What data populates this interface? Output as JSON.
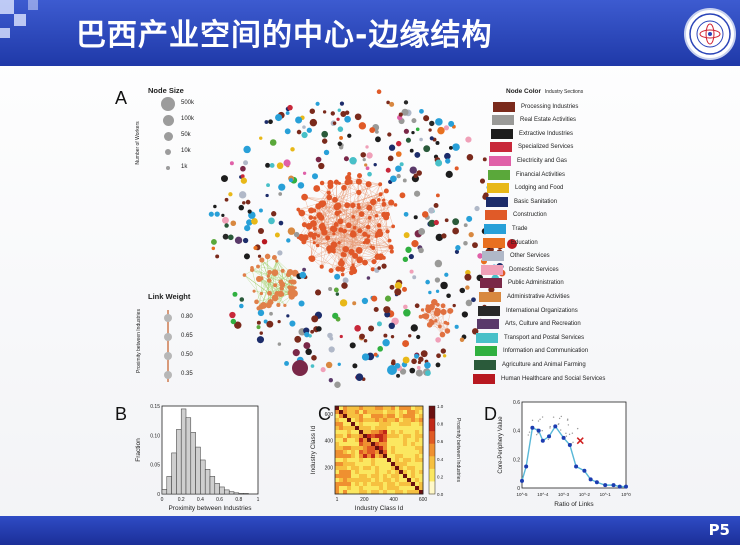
{
  "slide": {
    "title": "巴西产业空间的中心-边缘结构",
    "page": "P5"
  },
  "panels": {
    "a": "A",
    "b": "B",
    "c": "C",
    "d": "D"
  },
  "node_size_legend": {
    "title": "Node Size",
    "axis_label": "Number of Workers",
    "items": [
      "500k",
      "100k",
      "50k",
      "10k",
      "1k"
    ]
  },
  "link_weight_legend": {
    "title": "Link Weight",
    "axis_label": "Proximity between Industries",
    "items": [
      "0.80",
      "0.65",
      "0.50",
      "0.35"
    ]
  },
  "node_color_legend": {
    "title": "Node Color",
    "subtitle": "Industry Sections",
    "items": [
      {
        "label": "Processing Industries",
        "color": "#7a2a1c"
      },
      {
        "label": "Real Estate Activities",
        "color": "#9a9a98"
      },
      {
        "label": "Extractive Industries",
        "color": "#1d1d1d"
      },
      {
        "label": "Specialized Services",
        "color": "#c8283a"
      },
      {
        "label": "Electricity and Gas",
        "color": "#e060a8"
      },
      {
        "label": "Financial Activities",
        "color": "#5aa83a"
      },
      {
        "label": "Lodging and Food",
        "color": "#e8b818"
      },
      {
        "label": "Basic Sanitation",
        "color": "#1c2c6a"
      },
      {
        "label": "Construction",
        "color": "#e05a28"
      },
      {
        "label": "Trade",
        "color": "#28a0d8"
      },
      {
        "label": "Education",
        "color": "#e87020"
      },
      {
        "label": "Other Services",
        "color": "#b0b8c8"
      },
      {
        "label": "Domestic Services",
        "color": "#f0a0b8"
      },
      {
        "label": "Public Administration",
        "color": "#7a2848"
      },
      {
        "label": "Administrative Activities",
        "color": "#d88840"
      },
      {
        "label": "International Organizations",
        "color": "#282828"
      },
      {
        "label": "Arts, Culture and Recreation",
        "color": "#5a3a6a"
      },
      {
        "label": "Transport and Postal Services",
        "color": "#48c0c8"
      },
      {
        "label": "Information and Communication",
        "color": "#30b040"
      },
      {
        "label": "Agriculture and Animal Farming",
        "color": "#2a5a3a"
      },
      {
        "label": "Human Healthcare and Social Services",
        "color": "#b81820"
      }
    ]
  },
  "chart_data": [
    {
      "type": "bar",
      "panel": "B",
      "xlabel": "Proximity between Industries",
      "ylabel": "Fraction",
      "xlim": [
        0,
        1
      ],
      "ylim": [
        0,
        0.15
      ],
      "x_ticks": [
        "0",
        "0.2",
        "0.4",
        "0.6",
        "0.8",
        "1"
      ],
      "y_ticks": [
        "0",
        "0.05",
        "0.10",
        "0.15"
      ],
      "bin_centers": [
        0.025,
        0.075,
        0.125,
        0.175,
        0.225,
        0.275,
        0.325,
        0.375,
        0.425,
        0.475,
        0.525,
        0.575,
        0.625,
        0.675,
        0.725,
        0.775,
        0.825,
        0.875,
        0.925,
        0.975
      ],
      "values": [
        0.008,
        0.03,
        0.07,
        0.11,
        0.145,
        0.13,
        0.105,
        0.08,
        0.058,
        0.042,
        0.03,
        0.018,
        0.012,
        0.007,
        0.004,
        0.002,
        0.001,
        0.001,
        0.0,
        0.0
      ]
    },
    {
      "type": "heatmap",
      "panel": "C",
      "xlabel": "Industry Class Id",
      "ylabel": "Industry Class Id",
      "colorbar_label": "Proximity between Industries",
      "x_ticks": [
        "1",
        "200",
        "400",
        "600"
      ],
      "y_ticks": [
        "200",
        "400",
        "600"
      ],
      "colorbar_ticks": [
        "0.0",
        "0.2",
        "0.4",
        "0.6",
        "0.8",
        "1.0"
      ],
      "range": [
        0,
        1
      ]
    },
    {
      "type": "line",
      "panel": "D",
      "xlabel": "Ratio of Links",
      "ylabel": "Core-Periphery Value",
      "xscale": "log",
      "xlim": [
        -5,
        0
      ],
      "ylim": [
        0,
        0.6
      ],
      "x_ticks": [
        "10^-5",
        "10^-4",
        "10^-3",
        "10^-2",
        "10^-1",
        "10^0"
      ],
      "y_ticks": [
        "0",
        "0.2",
        "0.4",
        "0.6"
      ],
      "x": [
        -5,
        -4.8,
        -4.5,
        -4.2,
        -4.0,
        -3.7,
        -3.4,
        -3.0,
        -2.7,
        -2.4,
        -2.0,
        -1.7,
        -1.4,
        -1.0,
        -0.6,
        -0.3,
        0
      ],
      "y": [
        0.05,
        0.15,
        0.42,
        0.4,
        0.33,
        0.36,
        0.43,
        0.35,
        0.3,
        0.15,
        0.12,
        0.06,
        0.04,
        0.02,
        0.02,
        0.01,
        0.01
      ]
    }
  ]
}
